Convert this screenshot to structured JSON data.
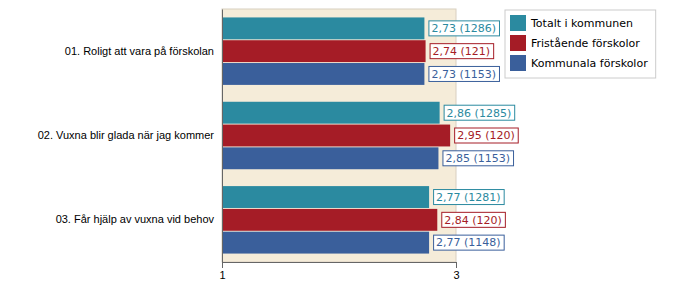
{
  "chart_data": {
    "type": "bar",
    "orientation": "horizontal",
    "categories": [
      "01. Roligt att vara på förskolan",
      "02. Vuxna blir glada när jag kommer",
      "03. Får hjälp av vuxna vid behov"
    ],
    "series": [
      {
        "name": "Totalt i kommunen",
        "color": "#2b8aa0",
        "values": [
          2.73,
          2.86,
          2.77
        ],
        "value_labels": [
          "2,73 (1286)",
          "2,86 (1285)",
          "2,77 (1281)"
        ]
      },
      {
        "name": "Fristående förskolor",
        "color": "#a51c26",
        "values": [
          2.74,
          2.95,
          2.84
        ],
        "value_labels": [
          "2,74 (121)",
          "2,95 (120)",
          "2,84 (120)"
        ]
      },
      {
        "name": "Kommunala förskolor",
        "color": "#3a5f9b",
        "values": [
          2.73,
          2.85,
          2.77
        ],
        "value_labels": [
          "2,73 (1153)",
          "2,85 (1153)",
          "2,77 (1148)"
        ]
      }
    ],
    "xlim": [
      1,
      3
    ],
    "xticks": [
      1,
      3
    ],
    "grid": false,
    "legend": "right",
    "data_labels": true
  }
}
